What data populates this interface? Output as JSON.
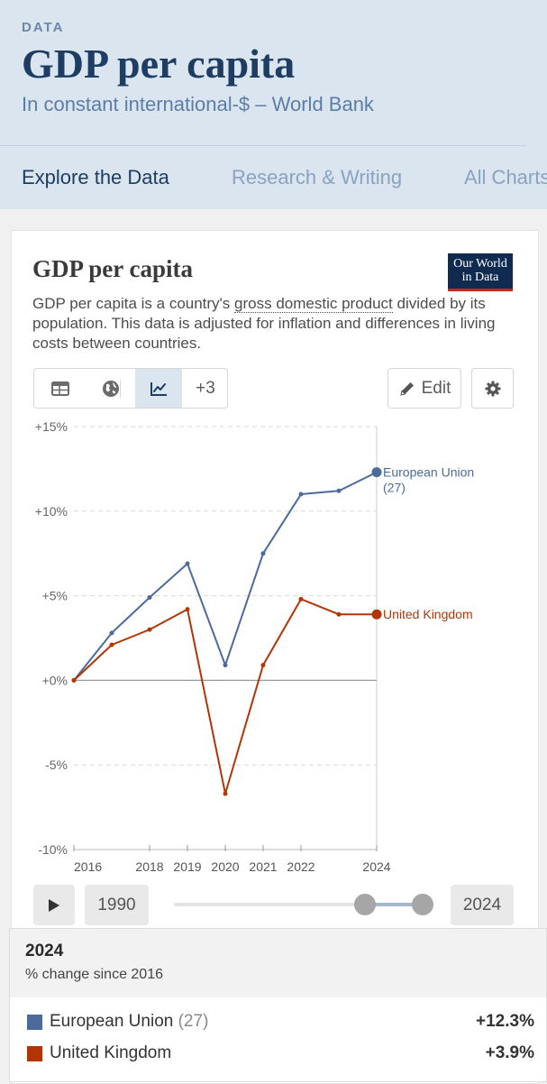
{
  "header": {
    "kicker": "DATA",
    "title": "GDP per capita",
    "subtitle": "In constant international-$ – World Bank"
  },
  "tabs": [
    {
      "label": "Explore the Data",
      "active": true
    },
    {
      "label": "Research & Writing",
      "active": false
    },
    {
      "label": "All Charts",
      "active": false
    }
  ],
  "chart_card": {
    "title": "GDP per capita",
    "logo_line1": "Our World",
    "logo_line2": "in Data",
    "desc_before": "GDP per capita is a country's ",
    "desc_term": "gross domestic product",
    "desc_after": " divided by its population. This data is adjusted for inflation and differences in living costs between countries.",
    "toolbar": {
      "table_icon": "table-icon",
      "map_icon": "globe-icon",
      "chart_icon": "line-chart-icon",
      "more_label": "+3",
      "edit_label": "Edit",
      "settings_icon": "gear-icon"
    }
  },
  "chart_data": {
    "type": "line",
    "x": [
      2016,
      2017,
      2018,
      2019,
      2020,
      2021,
      2022,
      2023,
      2024
    ],
    "x_tick_labels": [
      "2016",
      "2018",
      "2019",
      "2020",
      "2021",
      "2022",
      "2024"
    ],
    "y_tick_labels": [
      "+15%",
      "+10%",
      "+5%",
      "+0%",
      "-5%",
      "-10%"
    ],
    "ylim": [
      -10,
      15
    ],
    "y_ticks": [
      15,
      10,
      5,
      0,
      -5,
      -10
    ],
    "grid": true,
    "series": [
      {
        "name": "European Union (27)",
        "label_line1": "European Union",
        "label_line2": "(27)",
        "color": "#4c6a9c",
        "values": [
          0,
          2.8,
          4.9,
          6.9,
          0.9,
          7.5,
          11.0,
          11.2,
          12.3
        ]
      },
      {
        "name": "United Kingdom",
        "label_line1": "United Kingdom",
        "label_line2": "",
        "color": "#b13507",
        "values": [
          0,
          2.1,
          3.0,
          4.2,
          -6.7,
          0.9,
          4.8,
          3.9,
          3.9
        ]
      }
    ]
  },
  "timeline": {
    "start_year": "1990",
    "end_year": "2024",
    "play_icon": "play-icon"
  },
  "tooltip": {
    "year": "2024",
    "subtitle": "% change since 2016",
    "rows": [
      {
        "name": "European Union",
        "suffix": "(27)",
        "value": "+12.3%",
        "color": "#4c6a9c"
      },
      {
        "name": "United Kingdom",
        "suffix": "",
        "value": "+3.9%",
        "color": "#b13507"
      }
    ]
  }
}
